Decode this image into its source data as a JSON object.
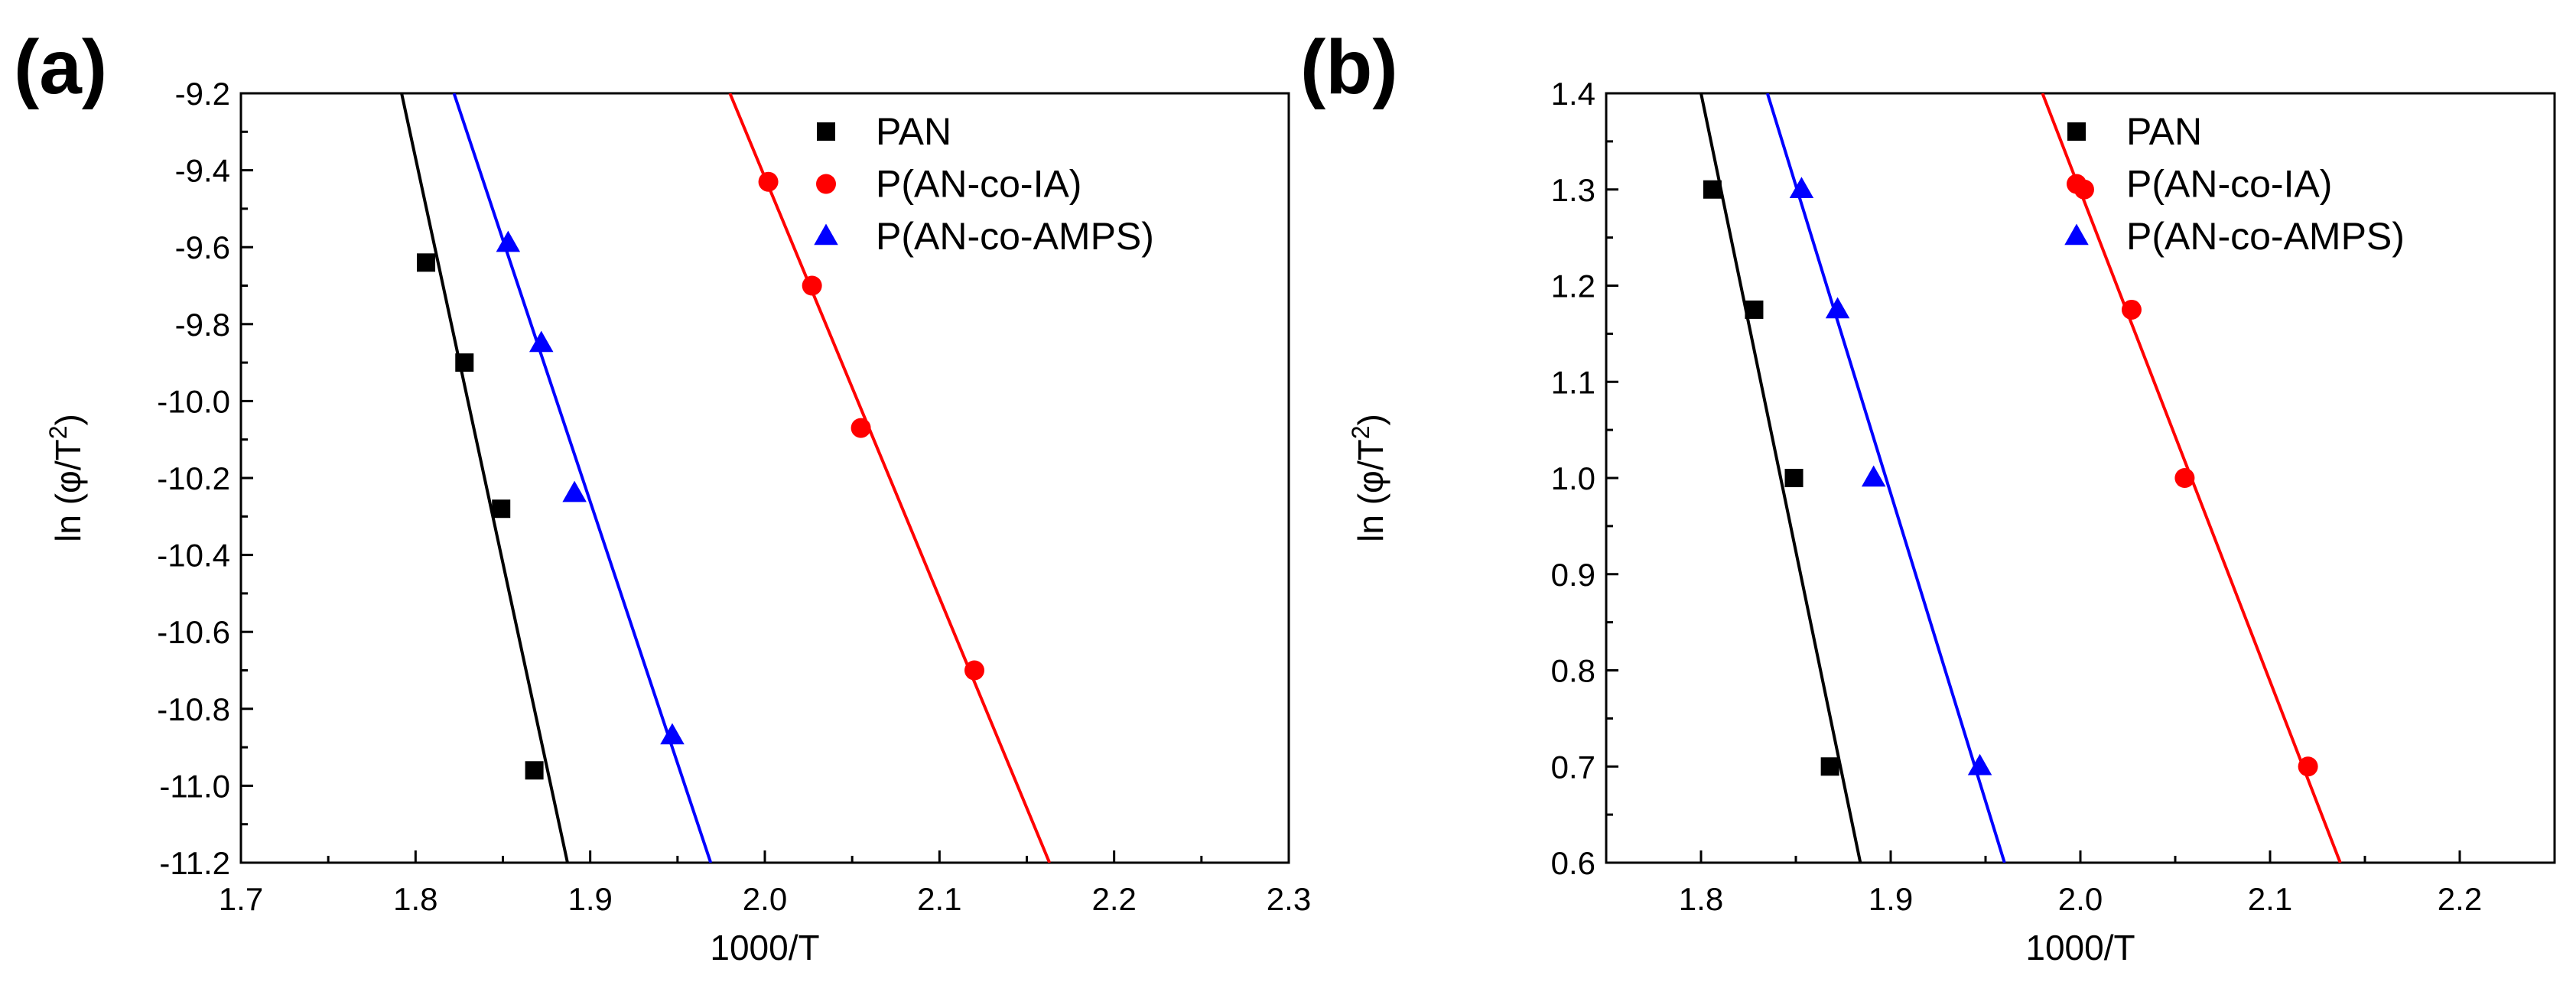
{
  "colors": {
    "PAN": "#000000",
    "P(AN-co-IA)": "#ff0000",
    "P(AN-co-AMPS)": "#0000ff"
  },
  "chart_data": [
    {
      "panel_label": "(a)",
      "type": "scatter",
      "xlabel": "1000/T",
      "ylabel": "ln (φ/T²)",
      "ylabel_parts": [
        "ln (φ/T",
        "2",
        ")"
      ],
      "xlim": [
        1.7,
        2.3
      ],
      "ylim": [
        -11.2,
        -9.2
      ],
      "xticks": [
        1.7,
        1.8,
        1.9,
        2.0,
        2.1,
        2.2,
        2.3
      ],
      "xtick_labels": [
        "1.7",
        "1.8",
        "1.9",
        "2.0",
        "2.1",
        "2.2",
        "2.3"
      ],
      "yticks": [
        -11.2,
        -11.0,
        -10.8,
        -10.6,
        -10.4,
        -10.2,
        -10.0,
        -9.8,
        -9.6,
        -9.4,
        -9.2
      ],
      "ytick_labels": [
        "-11.2",
        "-11.0",
        "-10.8",
        "-10.6",
        "-10.4",
        "-10.2",
        "-10.0",
        "-9.8",
        "-9.6",
        "-9.4",
        "-9.2"
      ],
      "legend_position": "top-right",
      "series": [
        {
          "name": "PAN",
          "marker": "square",
          "x": [
            1.806,
            1.828,
            1.849,
            1.868
          ],
          "y": [
            -9.64,
            -9.9,
            -10.28,
            -10.96
          ],
          "fit": {
            "x": [
              1.792,
              1.887
            ],
            "y": [
              -9.2,
              -11.2
            ]
          }
        },
        {
          "name": "P(AN-co-IA)",
          "marker": "circle",
          "x": [
            2.002,
            2.027,
            2.055,
            2.12
          ],
          "y": [
            -9.43,
            -9.7,
            -10.07,
            -10.7
          ],
          "fit": {
            "x": [
              1.98,
              2.163
            ],
            "y": [
              -9.2,
              -11.2
            ]
          }
        },
        {
          "name": "P(AN-co-AMPS)",
          "marker": "triangle",
          "x": [
            1.853,
            1.872,
            1.891,
            1.947
          ],
          "y": [
            -9.59,
            -9.85,
            -10.24,
            -10.87
          ],
          "fit": {
            "x": [
              1.822,
              1.969
            ],
            "y": [
              -9.2,
              -11.2
            ]
          }
        }
      ]
    },
    {
      "panel_label": "(b)",
      "type": "scatter",
      "xlabel": "1000/T",
      "ylabel": "ln (φ/T²)",
      "ylabel_parts": [
        "ln (φ/T",
        "2",
        ")"
      ],
      "xlim": [
        1.75,
        2.25
      ],
      "ylim": [
        0.6,
        1.4
      ],
      "xticks": [
        1.8,
        1.9,
        2.0,
        2.1,
        2.2
      ],
      "xtick_labels": [
        "1.8",
        "1.9",
        "2.0",
        "2.1",
        "2.2"
      ],
      "yticks": [
        0.6,
        0.7,
        0.8,
        0.9,
        1.0,
        1.1,
        1.2,
        1.3,
        1.4
      ],
      "ytick_labels": [
        "0.6",
        "0.7",
        "0.8",
        "0.9",
        "1.0",
        "1.1",
        "1.2",
        "1.3",
        "1.4"
      ],
      "legend_position": "top-right",
      "series": [
        {
          "name": "PAN",
          "marker": "square",
          "x": [
            1.806,
            1.828,
            1.849,
            1.868
          ],
          "y": [
            1.3,
            1.175,
            1.0,
            0.7
          ],
          "fit": {
            "x": [
              1.8,
              1.884
            ],
            "y": [
              1.4,
              0.6
            ]
          }
        },
        {
          "name": "P(AN-co-IA)",
          "marker": "circle",
          "x": [
            2.002,
            2.027,
            2.055,
            2.12
          ],
          "y": [
            1.3,
            1.175,
            1.0,
            0.7
          ],
          "fit": {
            "x": [
              1.98,
              2.137
            ],
            "y": [
              1.4,
              0.6
            ]
          }
        },
        {
          "name": "P(AN-co-AMPS)",
          "marker": "triangle",
          "x": [
            1.853,
            1.872,
            1.891,
            1.947
          ],
          "y": [
            1.3,
            1.175,
            1.0,
            0.7
          ],
          "fit": {
            "x": [
              1.835,
              1.96
            ],
            "y": [
              1.4,
              0.6
            ]
          }
        }
      ]
    }
  ]
}
